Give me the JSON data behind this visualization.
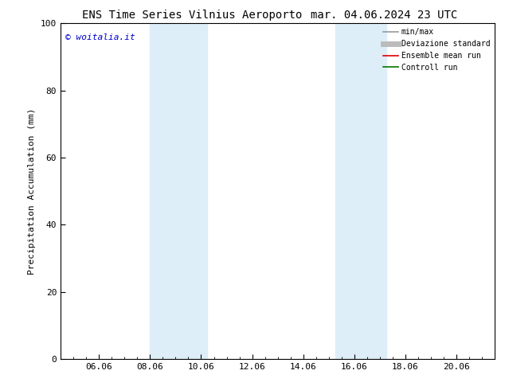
{
  "title_left": "ENS Time Series Vilnius Aeroporto",
  "title_right": "mar. 04.06.2024 23 UTC",
  "ylabel": "Precipitation Accumulation (mm)",
  "ylim": [
    0,
    100
  ],
  "yticks": [
    0,
    20,
    40,
    60,
    80,
    100
  ],
  "xlim": [
    4.5,
    21.5
  ],
  "xtick_positions": [
    6,
    8,
    10,
    12,
    14,
    16,
    18,
    20
  ],
  "xtick_labels": [
    "06.06",
    "08.06",
    "10.06",
    "12.06",
    "14.06",
    "16.06",
    "18.06",
    "20.06"
  ],
  "shaded_bands": [
    {
      "xmin": 8.0,
      "xmax": 10.25,
      "color": "#ddeef8",
      "alpha": 1.0
    },
    {
      "xmin": 15.25,
      "xmax": 17.25,
      "color": "#ddeef8",
      "alpha": 1.0
    }
  ],
  "watermark": "© woitalia.it",
  "watermark_color": "#0000cc",
  "legend_items": [
    {
      "label": "min/max",
      "color": "#999999",
      "lw": 1.2
    },
    {
      "label": "Deviazione standard",
      "color": "#bbbbbb",
      "lw": 5
    },
    {
      "label": "Ensemble mean run",
      "color": "#dd0000",
      "lw": 1.2
    },
    {
      "label": "Controll run",
      "color": "#007700",
      "lw": 1.2
    }
  ],
  "background_color": "#ffffff",
  "title_fontsize": 10,
  "label_fontsize": 8,
  "tick_fontsize": 8,
  "watermark_fontsize": 8
}
